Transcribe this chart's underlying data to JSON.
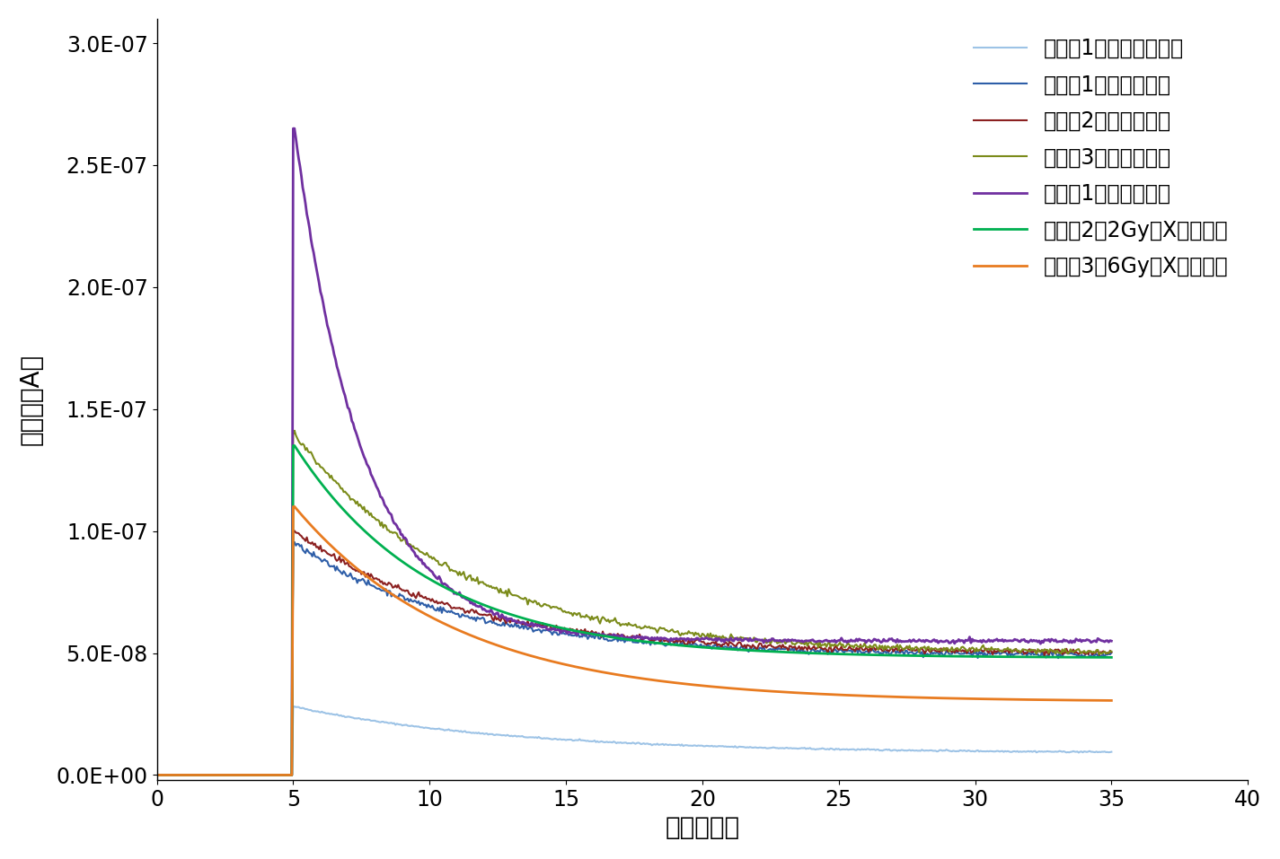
{
  "xlabel": "時間（秒）",
  "ylabel": "電流値（A）",
  "xlim": [
    0,
    40
  ],
  "ylim": [
    -2e-09,
    3.1e-07
  ],
  "xticks": [
    0,
    5,
    10,
    15,
    20,
    25,
    30,
    35,
    40
  ],
  "yticks": [
    0.0,
    5e-08,
    1e-07,
    1.5e-07,
    2e-07,
    2.5e-07,
    3e-07
  ],
  "ytick_labels": [
    "0.0E+00",
    "5.0E-08",
    "1.0E-07",
    "1.5E-07",
    "2.0E-07",
    "2.5E-07",
    "3.0E-07"
  ],
  "series": [
    {
      "label": "マウス1（健康な組織）",
      "color": "#9DC3E6",
      "linewidth": 1.5,
      "peak": 2.8e-08,
      "steady": 9e-09,
      "decay_tau": 8.0,
      "noise": 1.5e-10,
      "smooth": false
    },
    {
      "label": "マウス1（がん組織）",
      "color": "#2E5EA8",
      "linewidth": 1.5,
      "peak": 9.5e-08,
      "steady": 4.9e-08,
      "decay_tau": 6.0,
      "noise": 6e-10,
      "smooth": false
    },
    {
      "label": "マウス2（がん組織）",
      "color": "#8B2020",
      "linewidth": 1.5,
      "peak": 1e-07,
      "steady": 5e-08,
      "decay_tau": 6.0,
      "noise": 6e-10,
      "smooth": false
    },
    {
      "label": "マウス3（がん組織）",
      "color": "#7B8B1A",
      "linewidth": 1.5,
      "peak": 1.4e-07,
      "steady": 5e-08,
      "decay_tau": 6.0,
      "noise": 6e-10,
      "smooth": false
    },
    {
      "label": "マウス1（処置なし）",
      "color": "#7030A0",
      "linewidth": 2.0,
      "peak": 2.65e-07,
      "steady": 5.5e-08,
      "decay_tau": 2.5,
      "noise": 4e-10,
      "smooth": false
    },
    {
      "label": "マウス2（2GyのX線照射）",
      "color": "#00B050",
      "linewidth": 2.0,
      "peak": 1.35e-07,
      "steady": 4.8e-08,
      "decay_tau": 5.0,
      "noise": 0,
      "smooth": true
    },
    {
      "label": "マウス3（6GyのX線照射）",
      "color": "#E87B20",
      "linewidth": 2.0,
      "peak": 1.1e-07,
      "steady": 3e-08,
      "decay_tau": 6.0,
      "noise": 0,
      "smooth": true
    }
  ],
  "background_color": "#FFFFFF",
  "legend_fontsize": 17,
  "axis_fontsize": 20,
  "tick_fontsize": 17
}
